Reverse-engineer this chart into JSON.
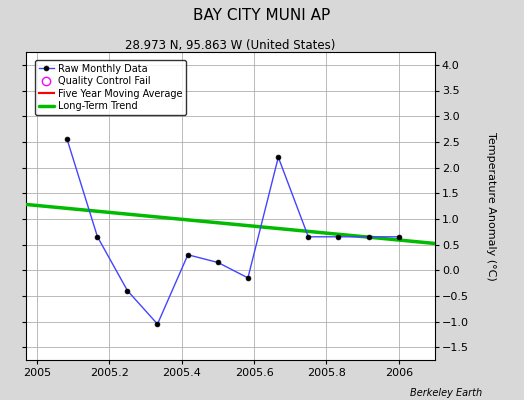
{
  "title": "BAY CITY MUNI AP",
  "subtitle": "28.973 N, 95.863 W (United States)",
  "credit": "Berkeley Earth",
  "raw_x": [
    2005.083,
    2005.167,
    2005.25,
    2005.333,
    2005.417,
    2005.5,
    2005.583,
    2005.667,
    2005.75,
    2005.833,
    2005.917,
    2006.0
  ],
  "raw_y": [
    2.55,
    0.65,
    -0.4,
    -1.05,
    0.3,
    0.15,
    -0.15,
    2.2,
    0.65,
    0.65,
    0.65,
    0.65
  ],
  "trend_x": [
    2004.97,
    2006.1
  ],
  "trend_y": [
    1.28,
    0.52
  ],
  "ylim": [
    -1.75,
    4.25
  ],
  "xlim": [
    2004.97,
    2006.1
  ],
  "yticks": [
    -1.5,
    -1.0,
    -0.5,
    0.0,
    0.5,
    1.0,
    1.5,
    2.0,
    2.5,
    3.0,
    3.5,
    4.0
  ],
  "xticks": [
    2005.0,
    2005.2,
    2005.4,
    2005.6,
    2005.8,
    2006.0
  ],
  "raw_color": "#4444ff",
  "trend_color": "#00bb00",
  "ma_color": "#ff0000",
  "bg_color": "#d8d8d8",
  "plot_bg": "#ffffff",
  "grid_color": "#b0b0b0",
  "title_fontsize": 11,
  "subtitle_fontsize": 8.5,
  "credit_fontsize": 7,
  "tick_fontsize": 8,
  "ylabel": "Temperature Anomaly (°C)",
  "ylabel_fontsize": 8
}
